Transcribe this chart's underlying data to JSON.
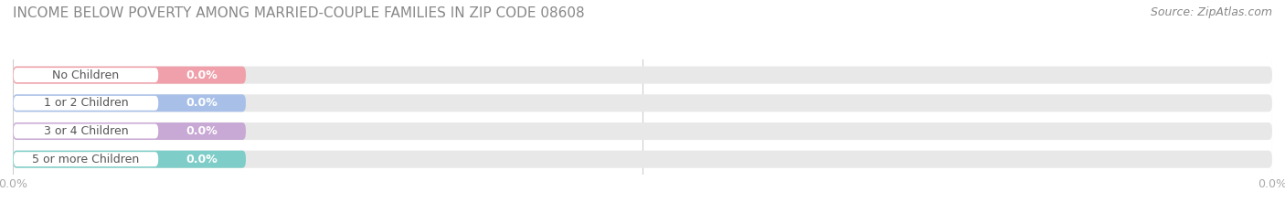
{
  "title": "INCOME BELOW POVERTY AMONG MARRIED-COUPLE FAMILIES IN ZIP CODE 08608",
  "source": "Source: ZipAtlas.com",
  "categories": [
    "No Children",
    "1 or 2 Children",
    "3 or 4 Children",
    "5 or more Children"
  ],
  "values": [
    0.0,
    0.0,
    0.0,
    0.0
  ],
  "bar_colors": [
    "#f0a0aa",
    "#a8c0e8",
    "#c8a8d4",
    "#7ecdc8"
  ],
  "bar_bg_color": "#e8e8e8",
  "background_color": "#ffffff",
  "title_color": "#888888",
  "source_color": "#888888",
  "label_color": "#555555",
  "value_color": "#ffffff",
  "tick_color": "#aaaaaa",
  "gridline_color": "#cccccc",
  "title_fontsize": 11,
  "source_fontsize": 9,
  "label_fontsize": 9,
  "value_fontsize": 9,
  "tick_fontsize": 9
}
